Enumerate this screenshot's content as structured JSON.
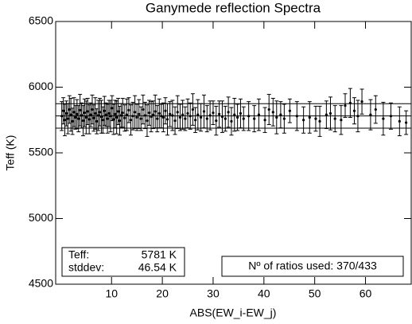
{
  "chart_data": {
    "type": "scatter",
    "title": "Ganymede reflection Spectra",
    "x_label": "ABS(EW_i-EW_j)",
    "y_label": "Teff (K)",
    "xlim": [
      -1,
      69
    ],
    "ylim": [
      4500,
      6500
    ],
    "xticks": [
      10,
      20,
      30,
      40,
      50,
      60
    ],
    "yticks": [
      4500,
      5000,
      5500,
      6000,
      6500
    ],
    "reference_lines": [
      5688,
      5781,
      5874
    ],
    "annotations": {
      "teff_label": "Teff:",
      "teff_value": "5781 K",
      "std_label": "stddev:",
      "std_value": "46.54 K",
      "ratios": "Nº of ratios used: 370/433"
    },
    "series": [
      {
        "color": "#000000",
        "x": [
          0.2,
          0.5,
          0.8,
          1.1,
          1.4,
          1.7,
          2.0,
          2.3,
          2.6,
          2.9,
          3.2,
          3.5,
          3.8,
          4.1,
          4.4,
          4.7,
          5.0,
          5.3,
          5.6,
          5.9,
          6.2,
          6.5,
          6.8,
          7.1,
          7.4,
          7.7,
          8.0,
          8.3,
          8.6,
          8.9,
          9.2,
          9.5,
          9.8,
          10.1,
          10.4,
          10.7,
          11.0,
          11.3,
          11.6,
          11.9,
          12.2,
          12.6,
          13.0,
          13.4,
          13.8,
          14.2,
          14.6,
          15.0,
          15.4,
          15.8,
          16.2,
          16.6,
          17.0,
          17.4,
          17.8,
          18.2,
          18.6,
          19.0,
          19.4,
          19.8,
          20.2,
          20.6,
          21.0,
          21.5,
          22.0,
          22.5,
          23.0,
          23.5,
          24.0,
          24.5,
          25.0,
          25.5,
          26.0,
          26.5,
          27.0,
          27.6,
          28.2,
          28.8,
          29.4,
          30.0,
          30.6,
          31.2,
          31.8,
          32.4,
          33.0,
          33.6,
          34.2,
          34.8,
          35.4,
          36.0,
          37.0,
          38.1,
          39.0,
          40.2,
          41.0,
          41.8,
          42.5,
          43.3,
          44.0,
          45.1,
          46.5,
          47.8,
          49.0,
          50.2,
          51.0,
          52.3,
          53.1,
          54.0,
          55.2,
          56.0,
          57.0,
          57.8,
          58.5,
          59.3,
          61.0,
          62.0,
          63.5,
          65.0,
          66.7,
          68.0
        ],
        "values": [
          5780,
          5820,
          5750,
          5800,
          5760,
          5830,
          5790,
          5740,
          5810,
          5770,
          5795,
          5760,
          5825,
          5785,
          5745,
          5805,
          5770,
          5815,
          5755,
          5790,
          5830,
          5765,
          5800,
          5740,
          5785,
          5810,
          5775,
          5750,
          5820,
          5790,
          5760,
          5800,
          5780,
          5840,
          5755,
          5795,
          5770,
          5815,
          5745,
          5785,
          5805,
          5765,
          5790,
          5825,
          5750,
          5780,
          5810,
          5770,
          5795,
          5760,
          5830,
          5785,
          5745,
          5805,
          5775,
          5790,
          5815,
          5760,
          5800,
          5780,
          5770,
          5820,
          5755,
          5795,
          5785,
          5745,
          5810,
          5770,
          5790,
          5760,
          5800,
          5780,
          5830,
          5750,
          5790,
          5770,
          5815,
          5760,
          5785,
          5805,
          5745,
          5795,
          5775,
          5760,
          5810,
          5740,
          5790,
          5770,
          5800,
          5760,
          5780,
          5760,
          5790,
          5750,
          5830,
          5810,
          5770,
          5790,
          5760,
          5820,
          5780,
          5750,
          5770,
          5760,
          5740,
          5790,
          5800,
          5760,
          5750,
          5860,
          5880,
          5820,
          5780,
          5890,
          5790,
          5830,
          5760,
          5780,
          5740,
          5730
        ],
        "errors": [
          110,
          100,
          120,
          95,
          115,
          105,
          125,
          100,
          110,
          90,
          110,
          100,
          120,
          95,
          115,
          105,
          125,
          100,
          110,
          90,
          110,
          100,
          120,
          95,
          115,
          105,
          125,
          100,
          110,
          90,
          110,
          100,
          120,
          95,
          115,
          105,
          125,
          100,
          110,
          90,
          110,
          100,
          120,
          95,
          115,
          105,
          125,
          100,
          110,
          90,
          110,
          100,
          120,
          95,
          115,
          105,
          125,
          100,
          110,
          90,
          110,
          100,
          120,
          95,
          115,
          105,
          125,
          100,
          110,
          90,
          110,
          100,
          120,
          95,
          115,
          105,
          125,
          100,
          110,
          90,
          110,
          100,
          120,
          95,
          115,
          105,
          125,
          100,
          110,
          90,
          110,
          100,
          120,
          95,
          115,
          105,
          125,
          100,
          110,
          90,
          110,
          100,
          120,
          95,
          115,
          105,
          125,
          100,
          110,
          90,
          110,
          100,
          120,
          95,
          115,
          105,
          125,
          100,
          110,
          90
        ]
      }
    ]
  }
}
